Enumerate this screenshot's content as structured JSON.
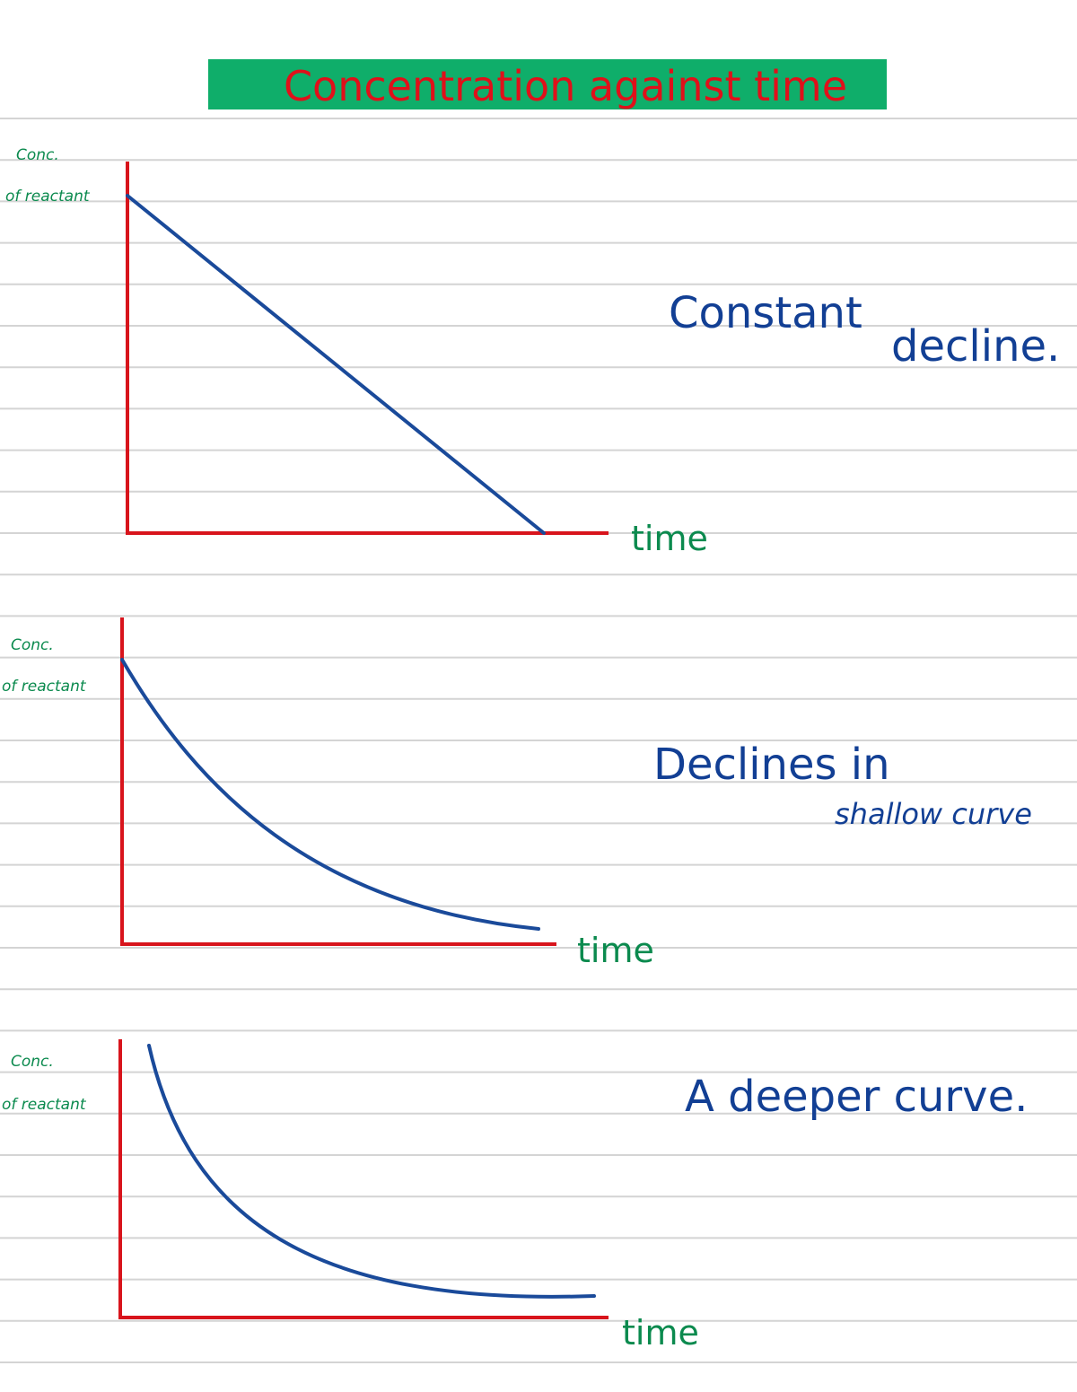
{
  "title": "Concentration against time",
  "panels": [
    {
      "y_label": [
        "Conc.",
        "of reactant"
      ],
      "x_label": "time",
      "note": [
        "Constant",
        "decline."
      ]
    },
    {
      "y_label": [
        "Conc.",
        "of reactant"
      ],
      "x_label": "time",
      "note": [
        "Declines in",
        "shallow curve"
      ]
    },
    {
      "y_label": [
        "Conc.",
        "of reactant"
      ],
      "x_label": "time",
      "note": [
        "A deeper curve."
      ]
    }
  ]
}
